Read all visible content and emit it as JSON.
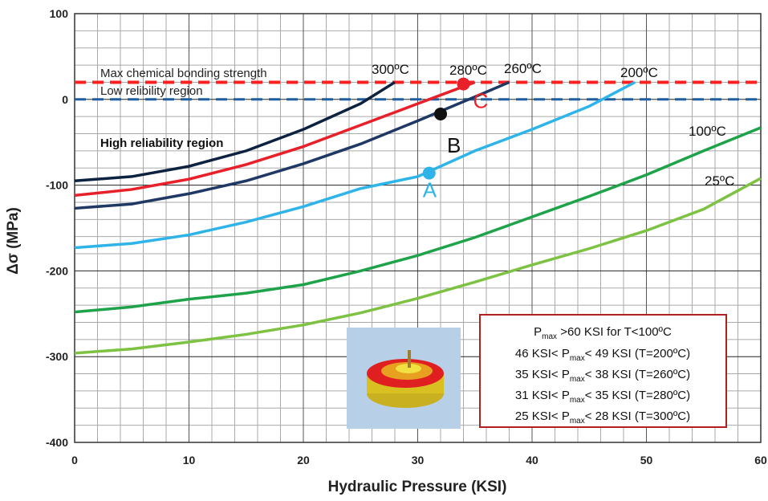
{
  "chart_data": {
    "type": "line",
    "x_label": "Hydraulic Pressure (KSI)",
    "y_label": "Δσ   (MPa)",
    "xlim": [
      0,
      60
    ],
    "ylim": [
      -400,
      100
    ],
    "xticks": [
      0,
      10,
      20,
      30,
      40,
      50,
      60
    ],
    "yticks": [
      -400,
      -300,
      -200,
      -100,
      0,
      100
    ],
    "xminorticks": [
      2,
      4,
      6,
      8,
      12,
      14,
      16,
      18,
      22,
      24,
      26,
      28,
      32,
      34,
      36,
      38,
      42,
      44,
      46,
      48,
      52,
      54,
      56,
      58
    ],
    "yminorticks": [
      -380,
      -360,
      -340,
      -320,
      -280,
      -260,
      -240,
      -220,
      -180,
      -160,
      -140,
      -120,
      -80,
      -60,
      -40,
      -20,
      20,
      40,
      60,
      80
    ],
    "grid": true,
    "series": [
      {
        "name": "300ºC",
        "color": "#0d2240",
        "x": [
          0,
          5,
          10,
          15,
          20,
          25,
          28
        ],
        "values": [
          -95,
          -90,
          -78,
          -60,
          -35,
          -5,
          20
        ]
      },
      {
        "name": "280ºC",
        "color": "#e8202a",
        "x": [
          0,
          5,
          10,
          15,
          20,
          25,
          30,
          35
        ],
        "values": [
          -112,
          -105,
          -93,
          -76,
          -55,
          -30,
          -5,
          20
        ]
      },
      {
        "name": "260ºC",
        "color": "#1f3864",
        "x": [
          0,
          5,
          10,
          15,
          20,
          25,
          30,
          35,
          38
        ],
        "values": [
          -127,
          -122,
          -110,
          -95,
          -75,
          -52,
          -25,
          3,
          20
        ]
      },
      {
        "name": "200ºC",
        "color": "#2fb4ea",
        "x": [
          0,
          5,
          10,
          15,
          20,
          25,
          30,
          35,
          40,
          45,
          49
        ],
        "values": [
          -173,
          -168,
          -158,
          -143,
          -125,
          -104,
          -90,
          -60,
          -35,
          -8,
          20
        ]
      },
      {
        "name": "100ºC",
        "color": "#1ea34a",
        "x": [
          0,
          5,
          10,
          15,
          20,
          25,
          30,
          35,
          40,
          45,
          50,
          55,
          60
        ],
        "values": [
          -248,
          -242,
          -233,
          -226,
          -216,
          -200,
          -182,
          -161,
          -137,
          -113,
          -88,
          -60,
          -33
        ]
      },
      {
        "name": "25ºC",
        "color": "#7dc242",
        "x": [
          0,
          5,
          10,
          15,
          20,
          25,
          30,
          35,
          40,
          45,
          50,
          55,
          60
        ],
        "values": [
          -296,
          -291,
          -283,
          -274,
          -263,
          -249,
          -232,
          -213,
          -193,
          -174,
          -153,
          -128,
          -92
        ]
      }
    ],
    "hlines": [
      {
        "value": 20,
        "label": "Max chemical bonding strength",
        "color": "#ff2020"
      },
      {
        "value": 0,
        "label": "Low relibility region",
        "color": "#1f5fa0"
      }
    ],
    "points": [
      {
        "label": "A",
        "x": 31,
        "y": -86,
        "color": "#2fb4ea"
      },
      {
        "label": "B",
        "x": 32,
        "y": -17,
        "color": "#111111"
      },
      {
        "label": "C",
        "x": 34,
        "y": 18,
        "color": "#e8202a"
      }
    ],
    "region_label": "High reliability region",
    "box_lines": [
      [
        "P",
        "max",
        " >60 KSI for T<100ºC"
      ],
      [
        "46 KSI< P",
        "max",
        "< 49 KSI (T=200ºC)"
      ],
      [
        "35 KSI< P",
        "max",
        "< 38 KSI (T=260ºC)"
      ],
      [
        "31 KSI< P",
        "max",
        "< 35 KSI (T=280ºC)"
      ],
      [
        "25 KSI< P",
        "max",
        "< 28 KSI (T=300ºC)"
      ]
    ]
  }
}
